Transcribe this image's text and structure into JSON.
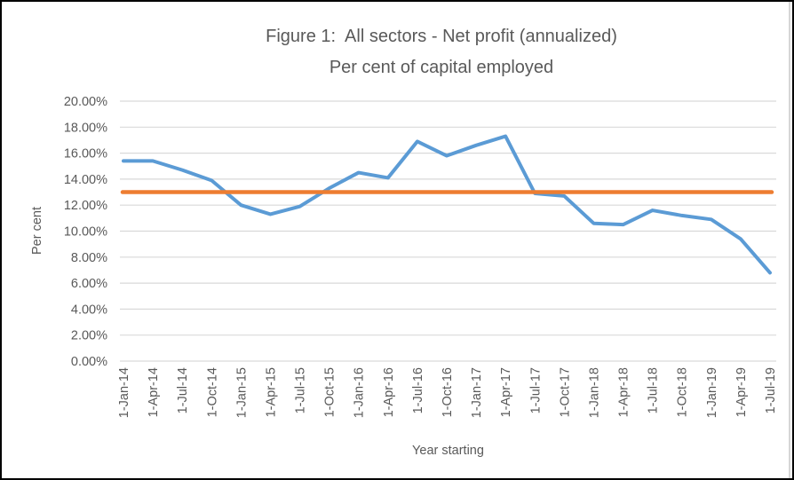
{
  "figure": {
    "title_line1": "Figure 1:  All sectors - Net profit (annualized)",
    "title_line2": "Per cent of capital employed",
    "x_axis_title": "Year starting",
    "y_axis_title": "Per cent"
  },
  "chart_data": {
    "type": "line",
    "title": "Figure 1:  All sectors - Net profit (annualized)\nPer cent of capital employed",
    "xlabel": "Year starting",
    "ylabel": "Per cent",
    "ylim": [
      0,
      20
    ],
    "ytick_interval": 2,
    "ytick_labels": [
      "0.00%",
      "2.00%",
      "4.00%",
      "6.00%",
      "8.00%",
      "10.00%",
      "12.00%",
      "14.00%",
      "16.00%",
      "18.00%",
      "20.00%"
    ],
    "grid": true,
    "legend": "none",
    "categories": [
      "1-Jan-14",
      "1-Apr-14",
      "1-Jul-14",
      "1-Oct-14",
      "1-Jan-15",
      "1-Apr-15",
      "1-Jul-15",
      "1-Oct-15",
      "1-Jan-16",
      "1-Apr-16",
      "1-Jul-16",
      "1-Oct-16",
      "1-Jan-17",
      "1-Apr-17",
      "1-Jul-17",
      "1-Oct-17",
      "1-Jan-18",
      "1-Apr-18",
      "1-Jul-18",
      "1-Oct-18",
      "1-Jan-19",
      "1-Apr-19",
      "1-Jul-19"
    ],
    "series": [
      {
        "id": "net-profit-line",
        "type": "line",
        "color": "#5B9BD5",
        "values": [
          15.4,
          15.4,
          14.7,
          13.9,
          12.0,
          11.3,
          11.9,
          13.3,
          14.5,
          14.1,
          16.9,
          15.8,
          16.6,
          17.3,
          12.9,
          12.7,
          10.6,
          10.5,
          11.6,
          11.2,
          10.9,
          9.4,
          6.8
        ]
      },
      {
        "id": "reference-line-13-percent",
        "type": "constant-line",
        "color": "#ED7D31",
        "value": 13.0
      }
    ],
    "styling": {
      "gridline_color": "#D9D9D9",
      "text_color": "#595959",
      "background": "#ffffff"
    }
  }
}
